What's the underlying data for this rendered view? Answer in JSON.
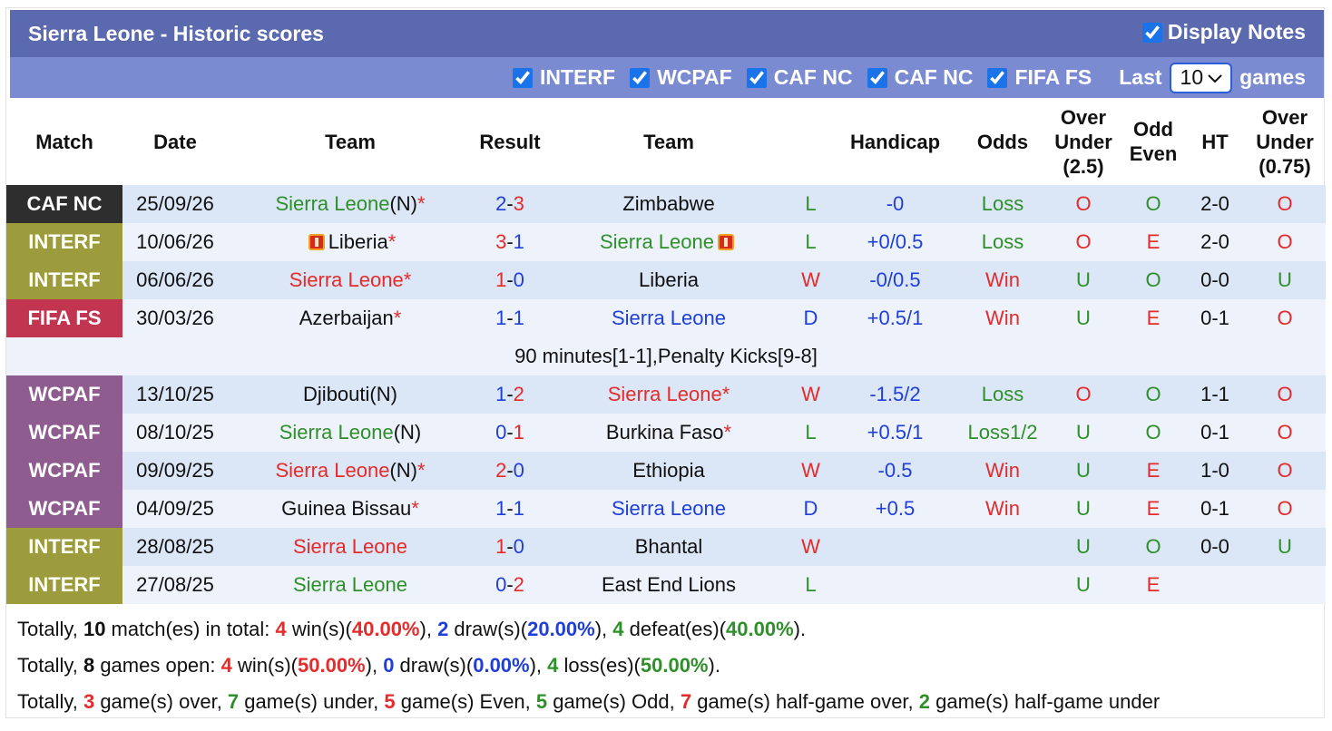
{
  "header": {
    "title": "Sierra Leone - Historic scores",
    "display_notes": {
      "label": "Display Notes",
      "checked": true
    }
  },
  "filters": {
    "items": [
      {
        "label": "INTERF",
        "checked": true
      },
      {
        "label": "WCPAF",
        "checked": true
      },
      {
        "label": "CAF NC",
        "checked": true
      },
      {
        "label": "CAF NC",
        "checked": true
      },
      {
        "label": "FIFA FS",
        "checked": true
      }
    ],
    "last_label": "Last",
    "last_value": "10",
    "games_label": "games"
  },
  "table": {
    "headers": [
      [
        "Match"
      ],
      [
        "Date"
      ],
      [
        "Team"
      ],
      [
        "Result"
      ],
      [
        "Team"
      ],
      [],
      [
        "Handicap"
      ],
      [
        "Odds"
      ],
      [
        "Over",
        "Under",
        "(2.5)"
      ],
      [
        "Odd",
        "Even"
      ],
      [
        "HT"
      ],
      [
        "Over",
        "Under",
        "(0.75)"
      ]
    ],
    "match_colors": {
      "CAF NC": "#2e2e2e",
      "INTERF": "#9c9c3c",
      "FIFA FS": "#c23550",
      "WCPAF": "#8e5c8f"
    },
    "palette": {
      "red": "#e52b2b",
      "green": "#2f8f2a",
      "blue": "#1f3fd8",
      "black": "#111111"
    },
    "cell_colors": {
      "wl": {
        "W": "red",
        "L": "green",
        "D": "blue"
      },
      "odds": {
        "Win": "red",
        "Loss": "green",
        "Loss1/2": "green"
      },
      "ou": {
        "O": "red",
        "U": "green"
      },
      "oe": {
        "O": "green",
        "E": "red"
      },
      "ou2": {
        "O": "red",
        "U": "green"
      }
    },
    "rows": [
      {
        "match": "CAF NC",
        "date": "25/09/26",
        "home": {
          "name": "Sierra Leone",
          "neutral": "(N)",
          "star": "*",
          "color": "green"
        },
        "result": [
          "2",
          "-",
          "3"
        ],
        "away": {
          "name": "Zimbabwe",
          "color": "black"
        },
        "wl": "L",
        "handicap": "-0",
        "odds": "Loss",
        "ou": "O",
        "oe": "O",
        "ht": "2-0",
        "ou2": "O"
      },
      {
        "match": "INTERF",
        "date": "10/06/26",
        "home": {
          "name": "Liberia",
          "star": "*",
          "color": "black",
          "card": true
        },
        "result": [
          "3",
          "-",
          "1"
        ],
        "away": {
          "name": "Sierra Leone",
          "color": "green",
          "card": true
        },
        "wl": "L",
        "handicap": "+0/0.5",
        "odds": "Loss",
        "ou": "O",
        "oe": "E",
        "ht": "2-0",
        "ou2": "O"
      },
      {
        "match": "INTERF",
        "date": "06/06/26",
        "home": {
          "name": "Sierra Leone",
          "star": "*",
          "color": "red"
        },
        "result": [
          "1",
          "-",
          "0"
        ],
        "away": {
          "name": "Liberia",
          "color": "black"
        },
        "wl": "W",
        "handicap": "-0/0.5",
        "odds": "Win",
        "ou": "U",
        "oe": "O",
        "ht": "0-0",
        "ou2": "U"
      },
      {
        "match": "FIFA FS",
        "date": "30/03/26",
        "home": {
          "name": "Azerbaijan",
          "star": "*",
          "color": "black"
        },
        "result": [
          "1",
          "-",
          "1"
        ],
        "away": {
          "name": "Sierra Leone",
          "color": "blue"
        },
        "wl": "D",
        "handicap": "+0.5/1",
        "odds": "Win",
        "ou": "U",
        "oe": "E",
        "ht": "0-1",
        "ou2": "O",
        "note": "90 minutes[1-1],Penalty Kicks[9-8]"
      },
      {
        "match": "WCPAF",
        "date": "13/10/25",
        "home": {
          "name": "Djibouti",
          "neutral": "(N)",
          "color": "black"
        },
        "result": [
          "1",
          "-",
          "2"
        ],
        "away": {
          "name": "Sierra Leone",
          "star": "*",
          "color": "red"
        },
        "wl": "W",
        "handicap": "-1.5/2",
        "odds": "Loss",
        "ou": "O",
        "oe": "O",
        "ht": "1-1",
        "ou2": "O"
      },
      {
        "match": "WCPAF",
        "date": "08/10/25",
        "home": {
          "name": "Sierra Leone",
          "neutral": "(N)",
          "color": "green"
        },
        "result": [
          "0",
          "-",
          "1"
        ],
        "away": {
          "name": "Burkina Faso",
          "star": "*",
          "color": "black"
        },
        "wl": "L",
        "handicap": "+0.5/1",
        "odds": "Loss1/2",
        "ou": "U",
        "oe": "O",
        "ht": "0-1",
        "ou2": "O"
      },
      {
        "match": "WCPAF",
        "date": "09/09/25",
        "home": {
          "name": "Sierra Leone",
          "neutral": "(N)",
          "star": "*",
          "color": "red"
        },
        "result": [
          "2",
          "-",
          "0"
        ],
        "away": {
          "name": "Ethiopia",
          "color": "black"
        },
        "wl": "W",
        "handicap": "-0.5",
        "odds": "Win",
        "ou": "U",
        "oe": "E",
        "ht": "1-0",
        "ou2": "O"
      },
      {
        "match": "WCPAF",
        "date": "04/09/25",
        "home": {
          "name": "Guinea Bissau",
          "star": "*",
          "color": "black"
        },
        "result": [
          "1",
          "-",
          "1"
        ],
        "away": {
          "name": "Sierra Leone",
          "color": "blue"
        },
        "wl": "D",
        "handicap": "+0.5",
        "odds": "Win",
        "ou": "U",
        "oe": "E",
        "ht": "0-1",
        "ou2": "O"
      },
      {
        "match": "INTERF",
        "date": "28/08/25",
        "home": {
          "name": "Sierra Leone",
          "color": "red"
        },
        "result": [
          "1",
          "-",
          "0"
        ],
        "away": {
          "name": "Bhantal",
          "color": "black"
        },
        "wl": "W",
        "ou": "U",
        "oe": "O",
        "ht": "0-0",
        "ou2": "U"
      },
      {
        "match": "INTERF",
        "date": "27/08/25",
        "home": {
          "name": "Sierra Leone",
          "color": "green"
        },
        "result": [
          "0",
          "-",
          "2"
        ],
        "away": {
          "name": "East End Lions",
          "color": "black"
        },
        "wl": "L",
        "ou": "U",
        "oe": "E"
      }
    ]
  },
  "summary": [
    [
      "Totally, ",
      {
        "text": "10",
        "color": "black"
      },
      " match(es) in total: ",
      {
        "text": "4",
        "color": "red"
      },
      " win(s)(",
      {
        "text": "40.00%",
        "color": "red"
      },
      "), ",
      {
        "text": "2",
        "color": "blue"
      },
      " draw(s)(",
      {
        "text": "20.00%",
        "color": "blue"
      },
      "), ",
      {
        "text": "4",
        "color": "green"
      },
      " defeat(es)(",
      {
        "text": "40.00%",
        "color": "green"
      },
      ")."
    ],
    [
      "Totally, ",
      {
        "text": "8",
        "color": "black"
      },
      " games open: ",
      {
        "text": "4",
        "color": "red"
      },
      " win(s)(",
      {
        "text": "50.00%",
        "color": "red"
      },
      "), ",
      {
        "text": "0",
        "color": "blue"
      },
      " draw(s)(",
      {
        "text": "0.00%",
        "color": "blue"
      },
      "), ",
      {
        "text": "4",
        "color": "green"
      },
      " loss(es)(",
      {
        "text": "50.00%",
        "color": "green"
      },
      ")."
    ],
    [
      "Totally, ",
      {
        "text": "3",
        "color": "red"
      },
      " game(s) over, ",
      {
        "text": "7",
        "color": "green"
      },
      " game(s) under, ",
      {
        "text": "5",
        "color": "red"
      },
      " game(s) Even, ",
      {
        "text": "5",
        "color": "green"
      },
      " game(s) Odd, ",
      {
        "text": "7",
        "color": "red"
      },
      " game(s) half-game over, ",
      {
        "text": "2",
        "color": "green"
      },
      " game(s) half-game under"
    ]
  ]
}
